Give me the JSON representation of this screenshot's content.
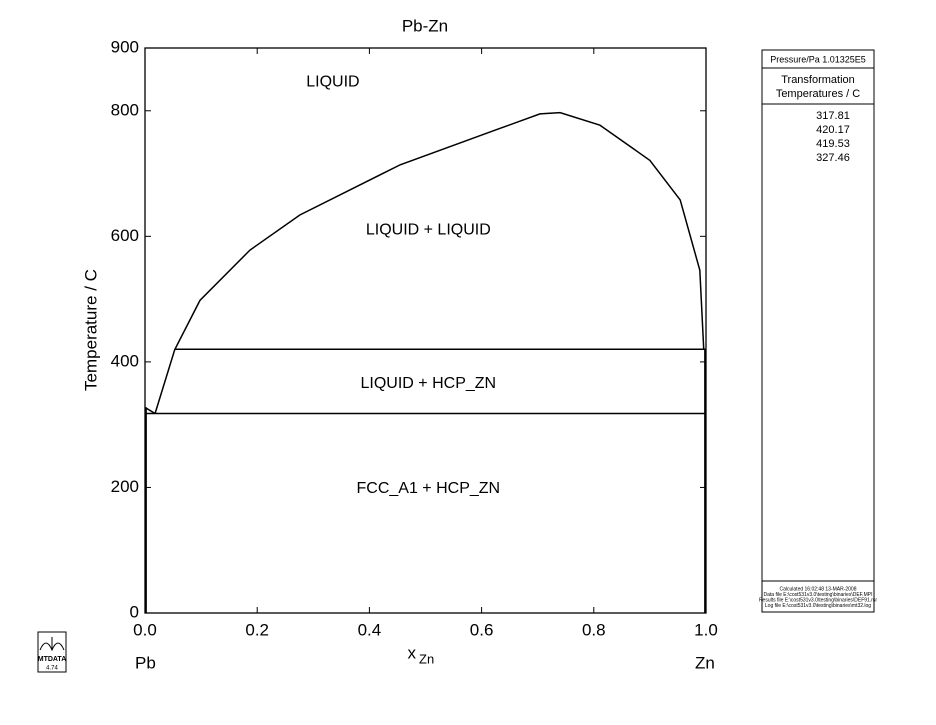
{
  "chart_data": {
    "type": "line",
    "title": "Pb-Zn",
    "xlabel": "x",
    "xlabel_sub": "Zn",
    "ylabel": "Temperature / C",
    "xlim": [
      0,
      1
    ],
    "ylim": [
      0,
      900
    ],
    "xticks": [
      {
        "value": 0,
        "label": "0.0"
      },
      0.2,
      0.4,
      0.6,
      0.8,
      {
        "value": 1,
        "label": "1.0"
      }
    ],
    "yticks": [
      0,
      200,
      400,
      600,
      800,
      900
    ],
    "x_end_labels": [
      "Pb",
      "Zn"
    ],
    "color": "#000000",
    "series": [
      {
        "x": [
          0.018,
          0.053,
          0.098,
          0.187,
          0.276,
          0.455,
          0.633,
          0.704,
          0.74,
          0.811,
          0.9,
          0.954,
          0.989,
          0.996
        ],
        "values": [
          318,
          419.5,
          498,
          578,
          634,
          714,
          772,
          795,
          797,
          777,
          721,
          658,
          546,
          419.5
        ]
      },
      {
        "x": [
          0.053,
          1.0
        ],
        "values": [
          420.17,
          420.17
        ]
      },
      {
        "x": [
          0.0,
          1.0
        ],
        "values": [
          317.81,
          317.81
        ]
      },
      {
        "x": [
          0.0,
          0.018
        ],
        "values": [
          327.46,
          317.81
        ]
      },
      {
        "x": [
          0.002,
          0.002
        ],
        "values": [
          0,
          327.46
        ]
      },
      {
        "x": [
          0.998,
          0.998
        ],
        "values": [
          0,
          420.17
        ]
      }
    ],
    "annotations": [
      {
        "text": "LIQUID",
        "x": 0.335,
        "y": 845
      },
      {
        "text": "LIQUID + LIQUID",
        "x": 0.505,
        "y": 610
      },
      {
        "text": "LIQUID + HCP_ZN",
        "x": 0.505,
        "y": 365
      },
      {
        "text": "FCC_A1 + HCP_ZN",
        "x": 0.505,
        "y": 198
      }
    ],
    "panel": {
      "pressure": "Pressure/Pa  1.01325E5",
      "heading": [
        "Transformation",
        "Temperatures / C"
      ],
      "temperatures": [
        317.81,
        420.17,
        419.53,
        327.46
      ],
      "footer": [
        "Calculated  16:02:48  13-MAR-2008",
        "Data file  E:\\cost531v3.0\\testing\\binaries\\DEF.MPI",
        "Results file  E:\\cost531v3.0\\testing\\binaries\\DEF91.rsr",
        "Log file  E:\\cost531v3.0\\testing\\binaries\\mt32.log"
      ]
    },
    "logo": {
      "name": "MTDATA",
      "version": "4.74"
    }
  }
}
